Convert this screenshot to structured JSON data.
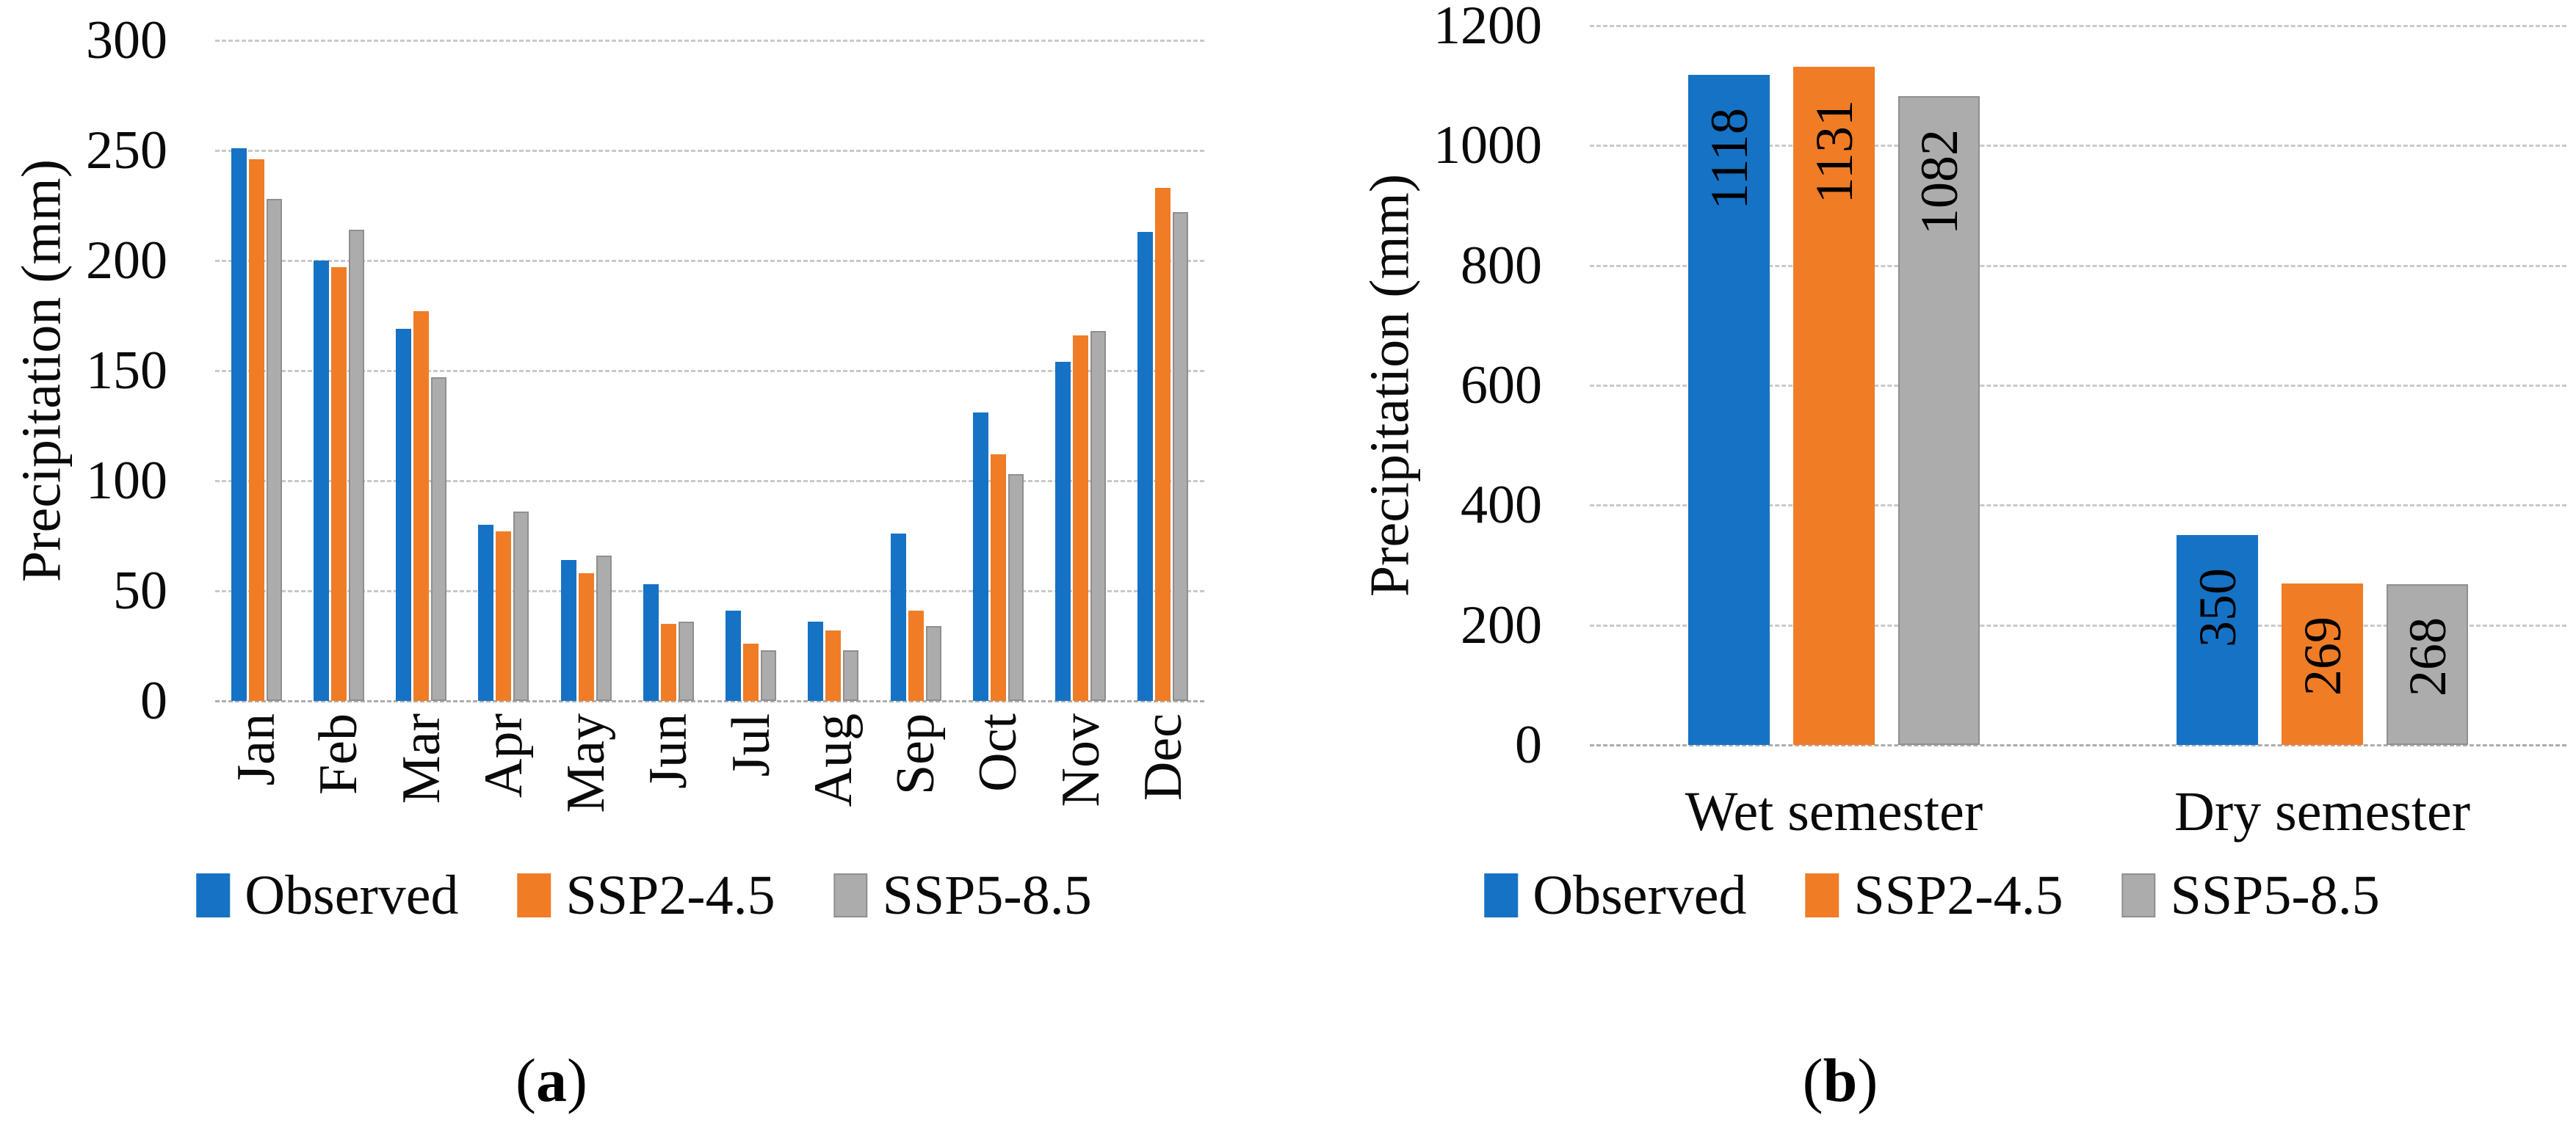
{
  "figure": {
    "panels": [
      {
        "caption_open": "(",
        "caption_letter": "a",
        "caption_close": ")"
      },
      {
        "caption_open": "(",
        "caption_letter": "b",
        "caption_close": ")"
      }
    ]
  },
  "colors": {
    "observed": "#1672C4",
    "ssp2_45": "#F07C26",
    "ssp5_85": "#ACACAC",
    "gridline": "#C9C9C9",
    "baseline": "#ADADAD",
    "text": "#000000"
  },
  "legend": {
    "items": [
      {
        "label": "Observed",
        "color": "#1672C4",
        "pattern": false
      },
      {
        "label": "SSP2-4.5",
        "color": "#F07C26",
        "pattern": false
      },
      {
        "label": "SSP5-8.5",
        "color": "#ACACAC",
        "pattern": true
      }
    ]
  },
  "chart_data": [
    {
      "id": "monthly-precipitation",
      "type": "bar",
      "title": "",
      "xlabel": "",
      "ylabel": "Precipitation (mm)",
      "categories": [
        "Jan",
        "Feb",
        "Mar",
        "Apr",
        "May",
        "Jun",
        "Jul",
        "Aug",
        "Sep",
        "Oct",
        "Nov",
        "Dec"
      ],
      "series": [
        {
          "name": "Observed",
          "color": "#1672C4",
          "pattern": false,
          "values": [
            251,
            200,
            169,
            80,
            64,
            53,
            41,
            36,
            76,
            131,
            154,
            213
          ]
        },
        {
          "name": "SSP2-4.5",
          "color": "#F07C26",
          "pattern": false,
          "values": [
            246,
            197,
            177,
            77,
            58,
            35,
            26,
            32,
            41,
            112,
            166,
            233
          ]
        },
        {
          "name": "SSP5-8.5",
          "color": "#ACACAC",
          "pattern": true,
          "values": [
            228,
            214,
            147,
            86,
            66,
            36,
            23,
            23,
            34,
            103,
            168,
            222
          ]
        }
      ],
      "ylim": [
        0,
        300
      ],
      "ytick_step": 50,
      "yticks": [
        0,
        50,
        100,
        150,
        200,
        250,
        300
      ],
      "grid": true,
      "legend_position": "bottom",
      "data_labels": false
    },
    {
      "id": "semester-precipitation",
      "type": "bar",
      "title": "",
      "xlabel": "",
      "ylabel": "Precipitation (mm)",
      "categories": [
        "Wet semester",
        "Dry semester"
      ],
      "series": [
        {
          "name": "Observed",
          "color": "#1672C4",
          "pattern": false,
          "values": [
            1118,
            350
          ]
        },
        {
          "name": "SSP2-4.5",
          "color": "#F07C26",
          "pattern": false,
          "values": [
            1131,
            269
          ]
        },
        {
          "name": "SSP5-8.5",
          "color": "#ACACAC",
          "pattern": true,
          "values": [
            1082,
            268
          ]
        }
      ],
      "ylim": [
        0,
        1200
      ],
      "ytick_step": 200,
      "yticks": [
        0,
        200,
        400,
        600,
        800,
        1000,
        1200
      ],
      "grid": true,
      "legend_position": "bottom",
      "data_labels": true
    }
  ]
}
